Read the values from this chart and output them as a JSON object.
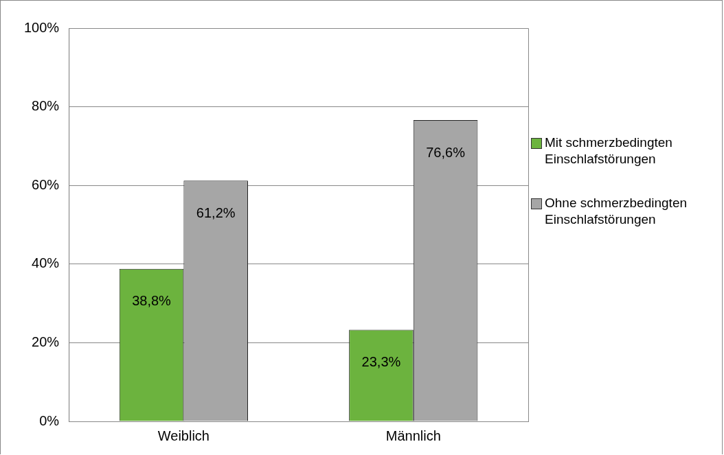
{
  "chart_data": {
    "type": "bar",
    "categories": [
      "Weiblich",
      "Männlich"
    ],
    "series": [
      {
        "name": "Mit schmerzbedingten Einschlafstörungen",
        "color": "#6cb33e",
        "values": [
          38.8,
          23.3
        ],
        "value_labels": [
          "38,8%",
          "23,3%"
        ]
      },
      {
        "name": "Ohne schmerzbedingten Einschlafstörungen",
        "color": "#a6a6a6",
        "values": [
          61.2,
          76.6
        ],
        "value_labels": [
          "61,2%",
          "76,6%"
        ]
      }
    ],
    "ylim": [
      0,
      100
    ],
    "yticks": [
      {
        "value": 0,
        "label": "0%"
      },
      {
        "value": 20,
        "label": "20%"
      },
      {
        "value": 40,
        "label": "40%"
      },
      {
        "value": 60,
        "label": "60%"
      },
      {
        "value": 80,
        "label": "80%"
      },
      {
        "value": 100,
        "label": "100%"
      }
    ],
    "grid": "y",
    "legend": "right"
  }
}
